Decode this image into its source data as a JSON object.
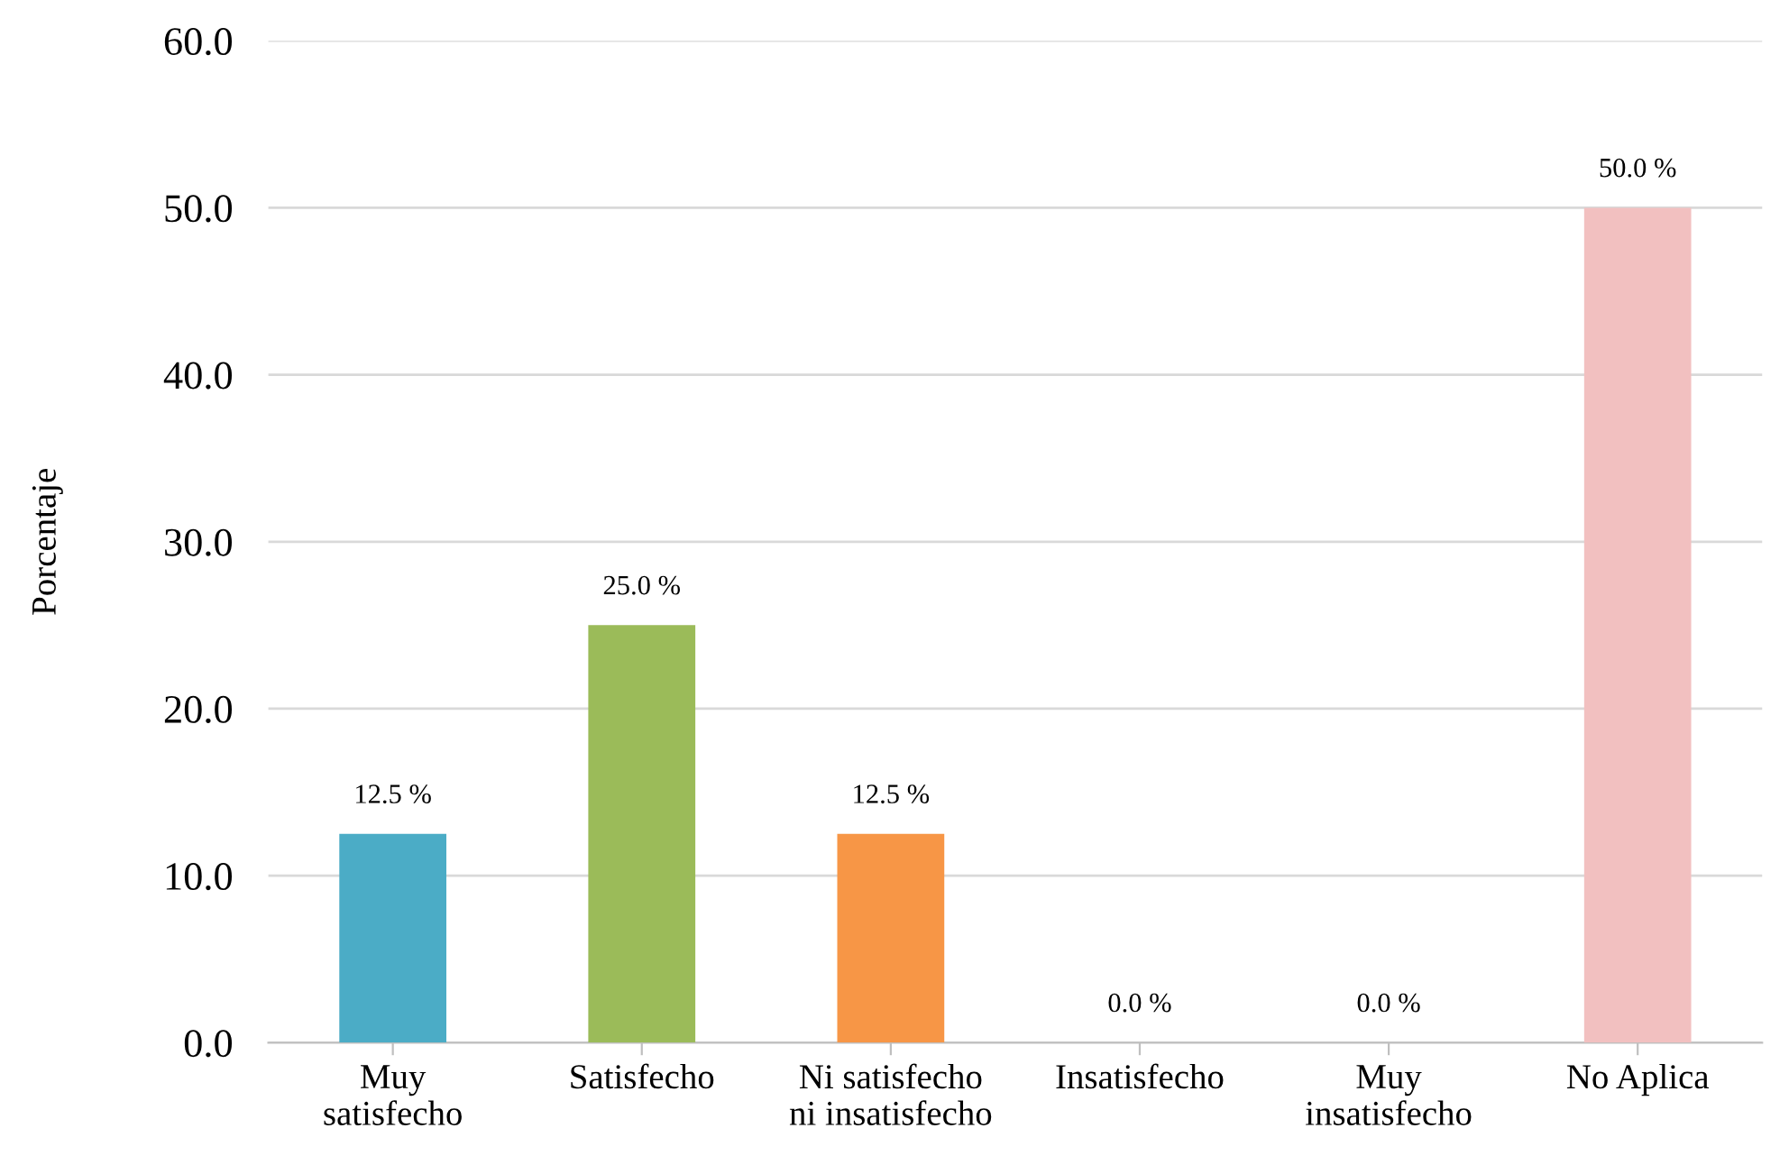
{
  "chart_data": {
    "type": "bar",
    "ylabel": "Porcentaje",
    "categories": [
      "Muy\nsatisfecho",
      "Satisfecho",
      "Ni satisfecho\nni insatisfecho",
      "Insatisfecho",
      "Muy\ninsatisfecho",
      "No Aplica"
    ],
    "values": [
      12.5,
      25.0,
      12.5,
      0.0,
      0.0,
      50.0
    ],
    "colors": [
      "#4bacc6",
      "#9bbb59",
      "#f79646",
      "#8064a2",
      "#c0504d",
      "#f2c0c0"
    ],
    "value_labels": [
      "12.5 %",
      "25.0 %",
      "12.5 %",
      "0.0 %",
      "0.0 %",
      "50.0 %"
    ],
    "ylim": [
      0,
      60
    ],
    "yticks": [
      {
        "value": 0,
        "label": "0.0"
      },
      {
        "value": 10,
        "label": "10.0"
      },
      {
        "value": 20,
        "label": "20.0"
      },
      {
        "value": 30,
        "label": "30.0"
      },
      {
        "value": 40,
        "label": "40.0"
      },
      {
        "value": 50,
        "label": "50.0"
      },
      {
        "value": 60,
        "label": "60.0"
      }
    ],
    "grid": "y"
  }
}
